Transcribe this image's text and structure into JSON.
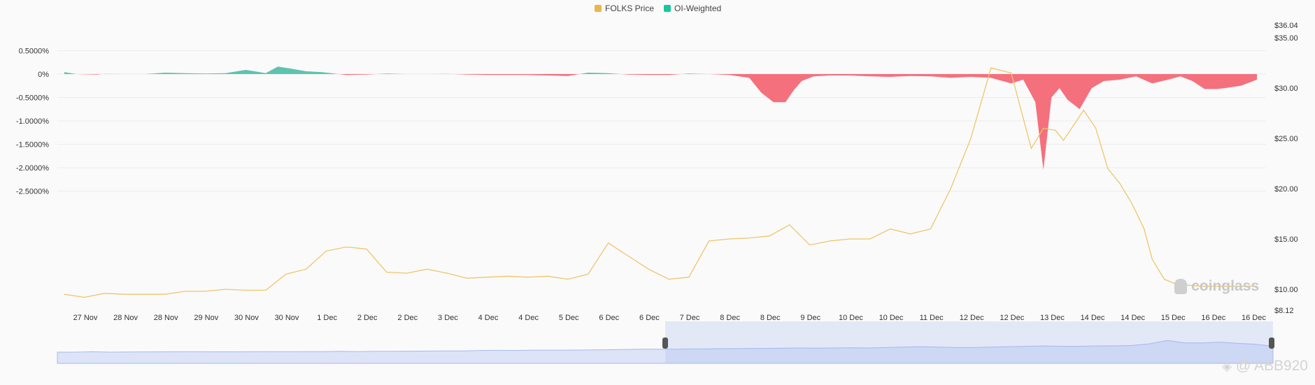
{
  "legend": [
    {
      "label": "FOLKS Price",
      "color": "#e8b64a"
    },
    {
      "label": "OI-Weighted",
      "color": "#16c79a"
    }
  ],
  "watermark": {
    "text": "coinglass",
    "icon": "coinglass-logo-icon"
  },
  "credit": {
    "text": "@ ABB920",
    "icon": "binance-square-icon"
  },
  "chart_data": {
    "type": "area",
    "categories": [
      "27 Nov",
      "28 Nov",
      "28 Nov",
      "29 Nov",
      "30 Nov",
      "30 Nov",
      "1 Dec",
      "2 Dec",
      "2 Dec",
      "3 Dec",
      "4 Dec",
      "4 Dec",
      "5 Dec",
      "6 Dec",
      "6 Dec",
      "7 Dec",
      "8 Dec",
      "8 Dec",
      "9 Dec",
      "10 Dec",
      "10 Dec",
      "11 Dec",
      "12 Dec",
      "12 Dec",
      "13 Dec",
      "14 Dec",
      "14 Dec",
      "15 Dec",
      "16 Dec",
      "16 Dec"
    ],
    "left_axis": {
      "ticks": [
        "0.5000%",
        "0%",
        "-0.5000%",
        "-1.0000%",
        "-1.5000%",
        "-2.0000%",
        "-2.5000%"
      ],
      "range": [
        -2.5,
        0.5
      ]
    },
    "right_axis": {
      "ticks": [
        "$36.04",
        "$35.00",
        "$30.00",
        "$25.00",
        "$20.00",
        "$15.00",
        "$10.00",
        "$8.12"
      ],
      "range": [
        8.12,
        36.04
      ]
    },
    "series": [
      {
        "name": "OI-Weighted",
        "axis": "left",
        "positive_color": "#5cc4ae",
        "negative_color": "#f4707d",
        "x": [
          0,
          0.3,
          0.8,
          1,
          1.5,
          2,
          2.5,
          3,
          3.5,
          4,
          4.5,
          4.8,
          5,
          5.3,
          5.6,
          6,
          6.4,
          7,
          7.5,
          8,
          8.5,
          9,
          9.5,
          10,
          10.5,
          11,
          11.5,
          12,
          12.5,
          13,
          13.5,
          14,
          14.5,
          15,
          15.5,
          16,
          16.5,
          17,
          17.3,
          17.6,
          17.9,
          18.1,
          18.3,
          18.6,
          19,
          19.5,
          20,
          20.5,
          21,
          21.5,
          22,
          22.5,
          23,
          23.5,
          23.8,
          24.1,
          24.3,
          24.5,
          24.7,
          24.9,
          25.2,
          25.5,
          25.8,
          26.2,
          26.6,
          27,
          27.4,
          27.7,
          28,
          28.3,
          28.6,
          28.8,
          29.2,
          29.6
        ],
        "values": [
          0.04,
          0,
          -0.01,
          0.005,
          0,
          0,
          0.03,
          0.02,
          0.01,
          0.02,
          0.09,
          0.05,
          0.02,
          0.16,
          0.12,
          0.06,
          0.04,
          -0.02,
          -0.01,
          0.01,
          0,
          0,
          0.005,
          -0.01,
          -0.02,
          -0.02,
          -0.02,
          -0.03,
          -0.04,
          0.03,
          0.02,
          -0.01,
          -0.02,
          -0.02,
          0.01,
          0,
          -0.02,
          -0.08,
          -0.4,
          -0.6,
          -0.6,
          -0.35,
          -0.15,
          -0.05,
          -0.03,
          -0.03,
          -0.05,
          -0.06,
          -0.04,
          -0.05,
          -0.08,
          -0.06,
          -0.08,
          -0.2,
          -0.12,
          -0.6,
          -2.05,
          -0.5,
          -0.3,
          -0.55,
          -0.75,
          -0.3,
          -0.15,
          -0.12,
          -0.05,
          -0.2,
          -0.12,
          -0.05,
          -0.15,
          -0.32,
          -0.32,
          -0.3,
          -0.25,
          -0.12
        ]
      },
      {
        "name": "FOLKS Price",
        "axis": "right",
        "color": "#efc56a",
        "x": [
          0,
          0.5,
          1,
          1.5,
          2,
          2.5,
          3,
          3.5,
          4,
          4.5,
          5,
          5.5,
          6,
          6.5,
          7,
          7.5,
          8,
          8.5,
          9,
          9.5,
          10,
          10.5,
          11,
          11.5,
          12,
          12.5,
          13,
          13.5,
          14,
          14.5,
          15,
          15.5,
          16,
          16.5,
          17,
          17.5,
          18,
          18.5,
          19,
          19.5,
          20,
          20.5,
          21,
          21.5,
          22,
          22.5,
          23,
          23.5,
          24,
          24.3,
          24.6,
          24.8,
          25,
          25.3,
          25.6,
          25.9,
          26.2,
          26.5,
          26.8,
          27,
          27.3,
          27.6,
          27.9,
          28.2,
          28.5,
          28.8,
          29.1,
          29.4,
          29.6
        ],
        "values": [
          9.5,
          9.2,
          9.6,
          9.5,
          9.5,
          9.5,
          9.8,
          9.8,
          10.0,
          9.9,
          9.9,
          11.5,
          12.0,
          13.8,
          14.2,
          14.0,
          11.7,
          11.6,
          12.0,
          11.6,
          11.1,
          11.2,
          11.3,
          11.2,
          11.3,
          11.0,
          11.5,
          14.6,
          13.3,
          12.0,
          11.0,
          11.2,
          14.8,
          15.0,
          15.1,
          15.3,
          16.4,
          14.4,
          14.8,
          15.0,
          15.0,
          16.0,
          15.5,
          16.0,
          20.0,
          25.0,
          32.0,
          31.5,
          24.0,
          26.0,
          25.8,
          24.8,
          26.0,
          27.8,
          26.0,
          22.0,
          20.5,
          18.5,
          16.0,
          13.0,
          11.0,
          10.5,
          10.4,
          10.3,
          10.3,
          10.3,
          10.3,
          10.3,
          10.3
        ]
      }
    ],
    "navigator": {
      "values": [
        0.5,
        0.5,
        0.55,
        0.5,
        0.52,
        0.53,
        0.54,
        0.55,
        0.55,
        0.54,
        0.54,
        0.55,
        0.56,
        0.55,
        0.56,
        0.56,
        0.6,
        0.57,
        0.6,
        0.6,
        0.62,
        0.63,
        0.65,
        0.65,
        0.7,
        0.72,
        0.7,
        0.74,
        0.74,
        0.74,
        0.76,
        0.78,
        0.82,
        0.85,
        0.86,
        0.86,
        0.88,
        0.9,
        0.92,
        0.93,
        0.95,
        0.97,
        1.0,
        0.98,
        1.0,
        1.02,
        1.0,
        1.05,
        1.1,
        1.15,
        1.1,
        1.05,
        1.05,
        1.1,
        1.15,
        1.2,
        1.25,
        1.2,
        1.2,
        1.25,
        1.25,
        1.3,
        1.5,
        1.9,
        1.6,
        1.6,
        1.7,
        1.55,
        1.45,
        1.2
      ],
      "selected_range": [
        0.5,
        1.0
      ]
    }
  }
}
